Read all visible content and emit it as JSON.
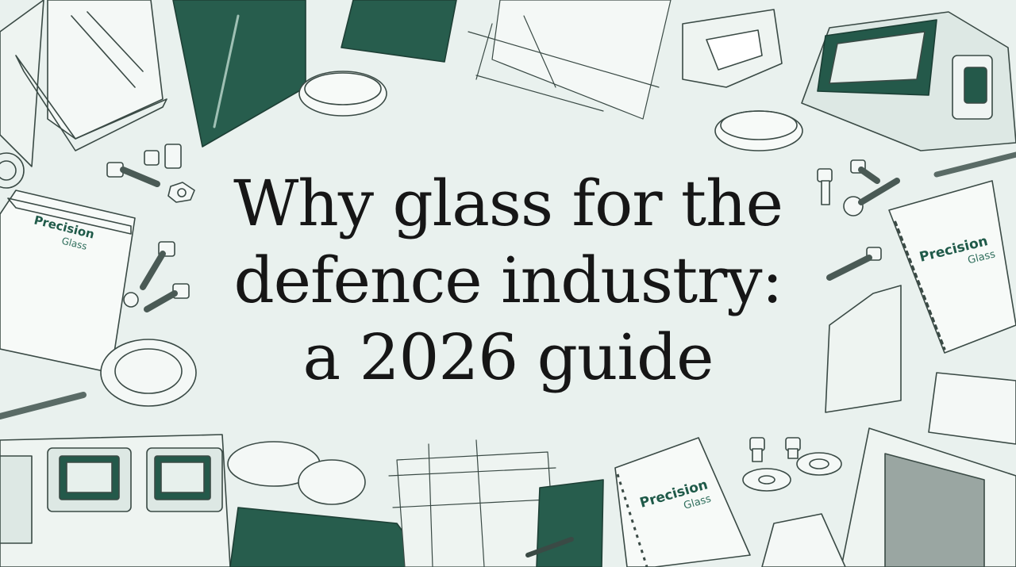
{
  "title": {
    "lines": [
      "Why glass for the",
      "defence industry:",
      "a 2026 guide"
    ]
  },
  "notebook_labels": {
    "word1": "Precision",
    "word2": "Glass"
  },
  "colors": {
    "background": "#e9f1ee",
    "ink": "#2f3f3a",
    "accent_green": "#24594a",
    "title_text": "#161616"
  }
}
